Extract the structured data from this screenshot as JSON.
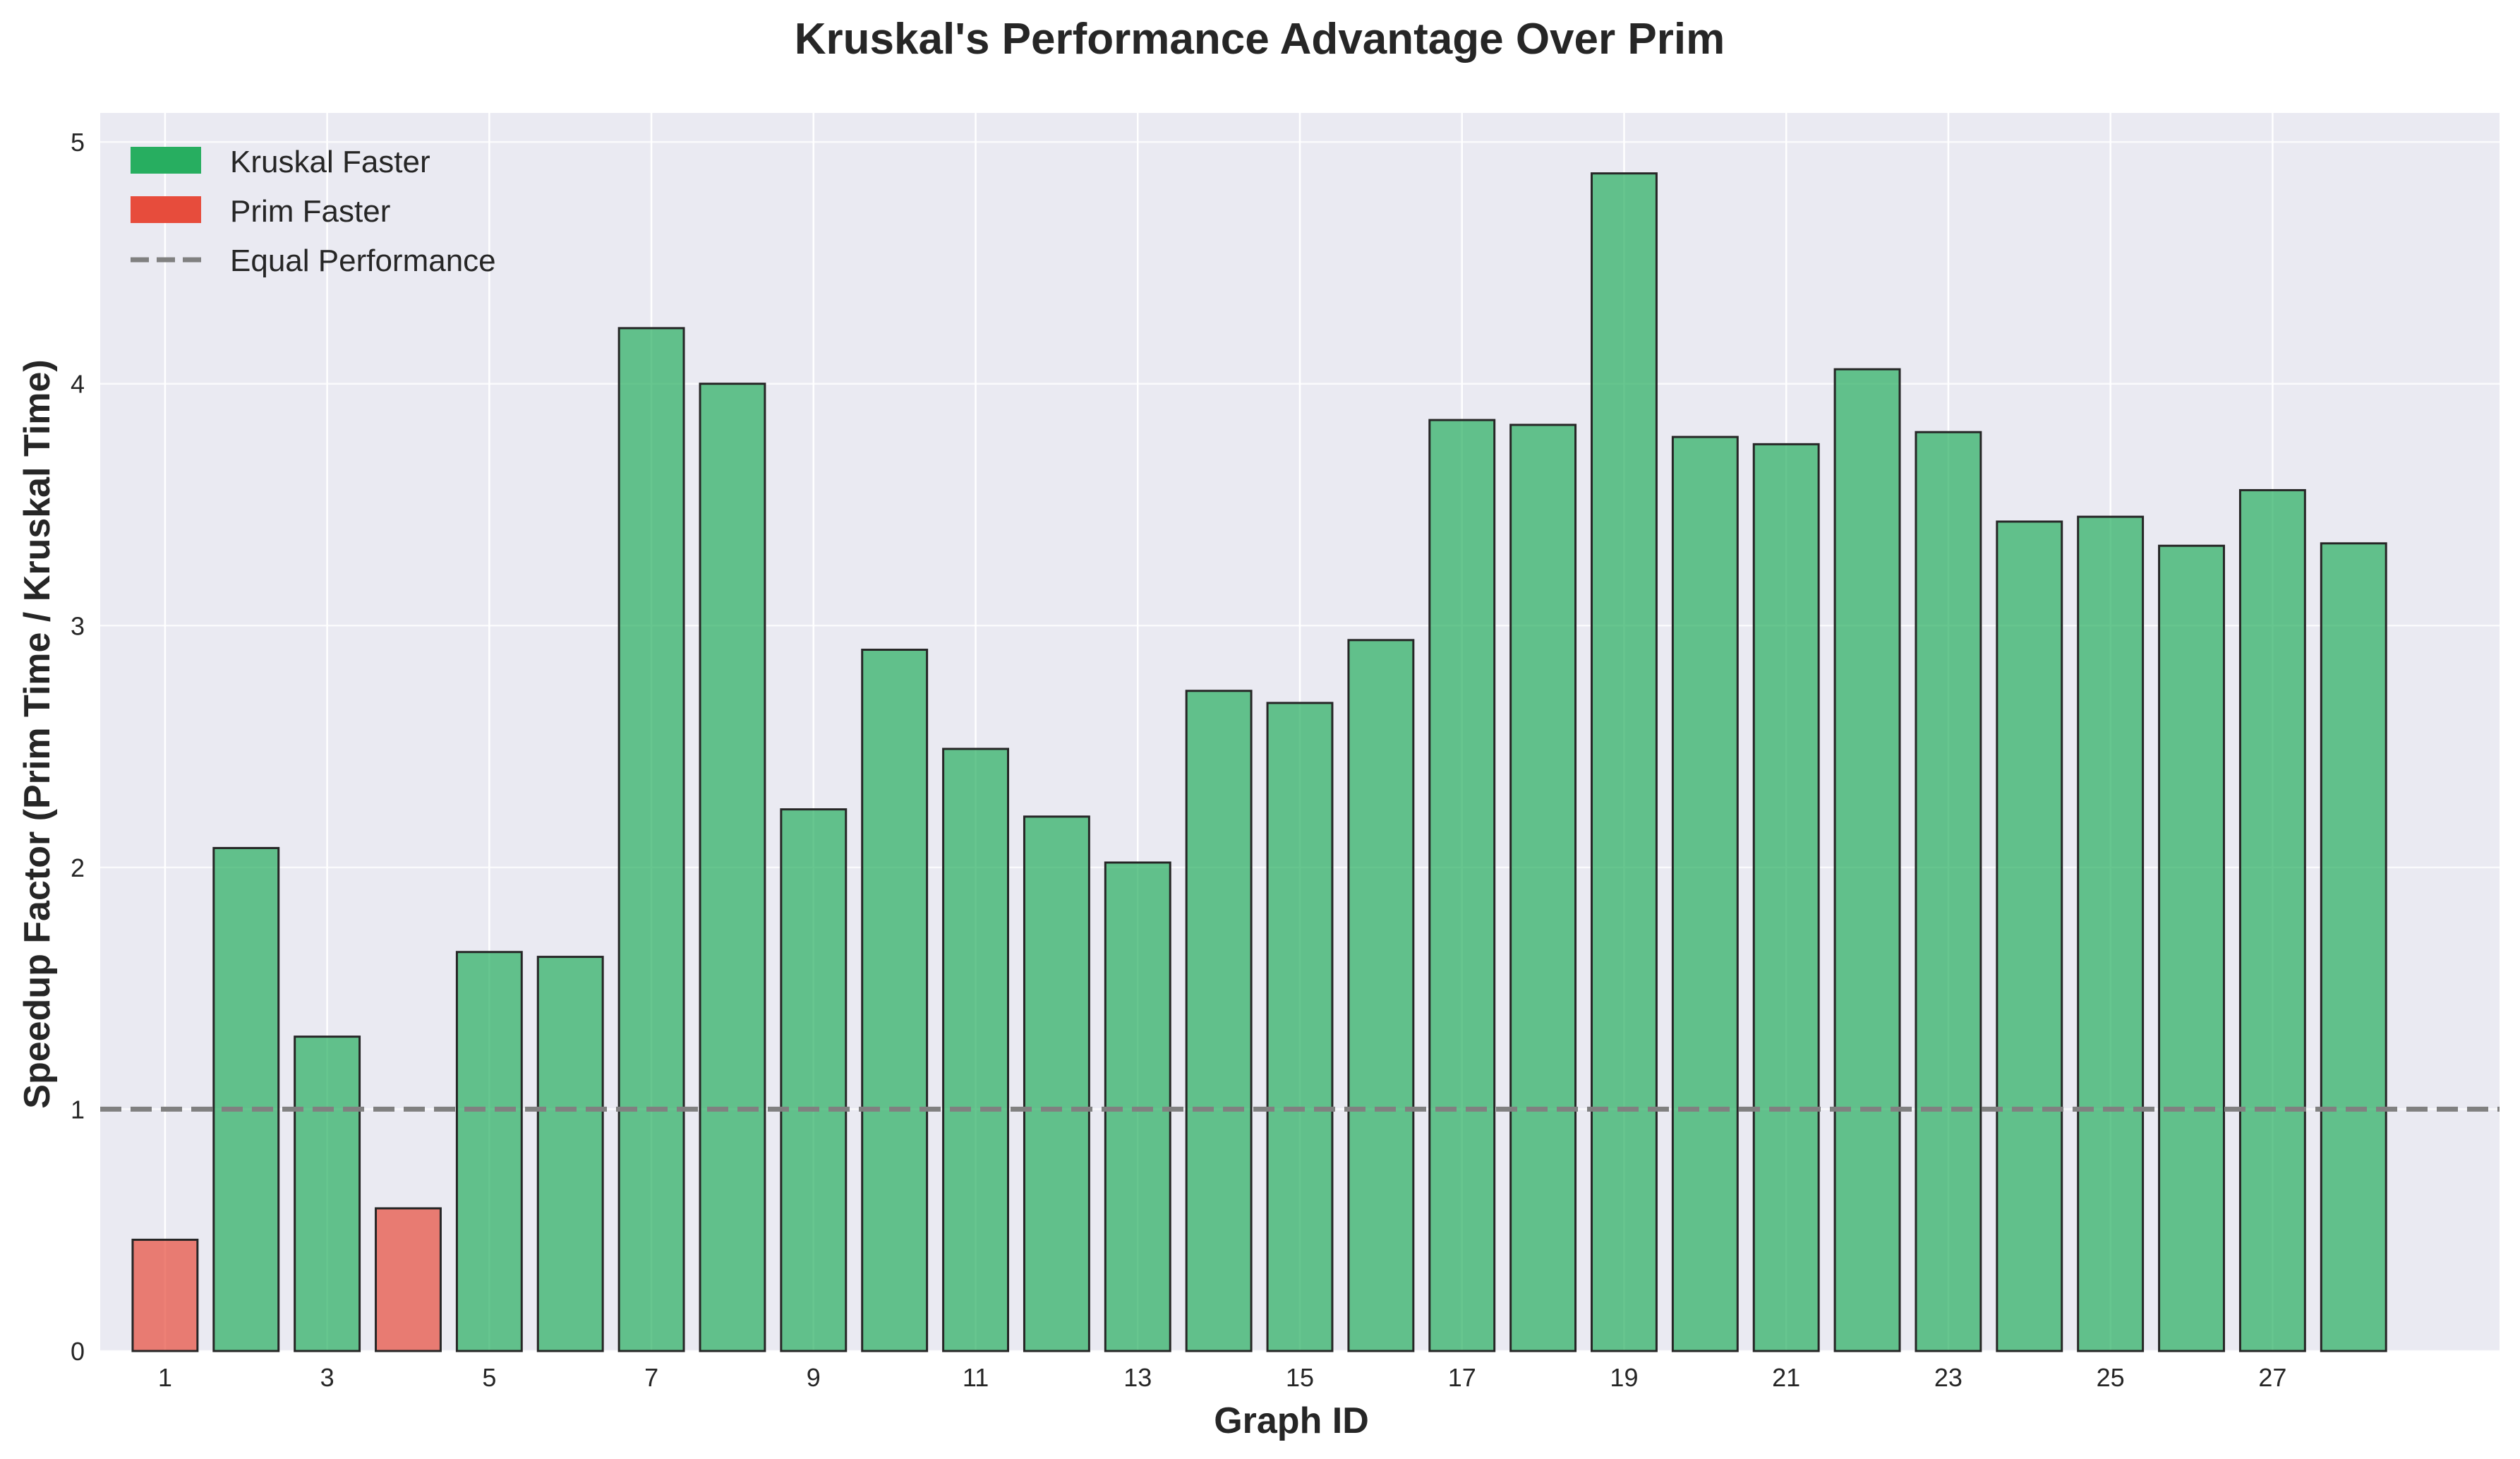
{
  "chart_data": {
    "type": "bar",
    "title": "Kruskal's Performance Advantage Over Prim",
    "xlabel": "Graph ID",
    "ylabel": "Speedup Factor (Prim Time / Kruskal Time)",
    "categories": [
      1,
      2,
      3,
      4,
      5,
      6,
      7,
      8,
      9,
      10,
      11,
      12,
      13,
      14,
      15,
      16,
      17,
      18,
      19,
      20,
      21,
      22,
      23,
      24,
      25,
      26,
      27,
      28
    ],
    "values": [
      0.46,
      2.08,
      1.3,
      0.59,
      1.65,
      1.63,
      4.23,
      4.0,
      2.24,
      2.9,
      2.49,
      2.21,
      2.02,
      2.73,
      2.68,
      2.94,
      3.85,
      3.83,
      4.87,
      3.78,
      3.75,
      4.06,
      3.8,
      3.43,
      3.45,
      3.33,
      3.56,
      3.34
    ],
    "x_tick_labels": [
      "1",
      "3",
      "5",
      "7",
      "9",
      "11",
      "13",
      "15",
      "17",
      "19",
      "21",
      "23",
      "25",
      "27"
    ],
    "y_ticks": [
      0,
      1,
      2,
      3,
      4,
      5
    ],
    "ylim": [
      0,
      5.12
    ],
    "xlim": [
      -0.8,
      28.8
    ],
    "reference_line": {
      "value": 1,
      "label": "Equal Performance",
      "style": "dashed",
      "color": "#808080"
    },
    "legend": {
      "position": "top-left",
      "entries": [
        {
          "label": "Kruskal Faster",
          "color": "#27ae60",
          "kind": "patch"
        },
        {
          "label": "Prim Faster",
          "color": "#e74c3c",
          "kind": "patch"
        },
        {
          "label": "Equal Performance",
          "color": "#808080",
          "kind": "dashed-line"
        }
      ]
    },
    "colors": {
      "kruskal_faster": "#27ae60",
      "prim_faster": "#e74c3c",
      "bar_alpha": 0.7,
      "bar_edge": "#262626",
      "plot_background": "#eaeaf2",
      "grid": "#ffffff"
    },
    "grid": true
  }
}
